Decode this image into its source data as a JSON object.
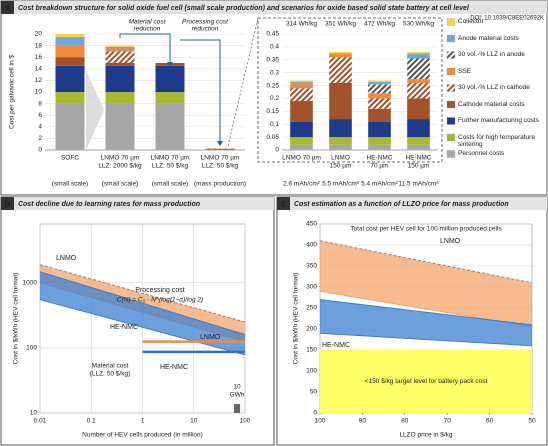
{
  "chart_data": [
    {
      "type": "stacked-bar",
      "panel": "a",
      "title": "Cost breakdown structure for solid oxide fuel cell (small scale production) and scenarios for oxide based solid state battery at cell level",
      "source": "DOI: 10.1039/C8EE02692K",
      "ylabel": "Cost per galvanic cell in $",
      "categories": [
        [
          "SOFC"
        ],
        [
          "LNMO 70 µm",
          "LLZ: 2000 $/kg"
        ],
        [
          "LNMO 70 µm",
          "LLZ: 50 $/kg"
        ],
        [
          "LNMO 70 µm",
          "LLZ: 50 $/kg"
        ]
      ],
      "sublabels": [
        "(small scale)",
        "(small scale)",
        "(small scale)",
        "(mass production)"
      ],
      "annotations": [
        [
          "Material cost",
          "reduction"
        ],
        [
          "Processing cost",
          "reduction"
        ]
      ],
      "ylim": [
        0,
        20
      ],
      "yticks": [
        0,
        2,
        4,
        6,
        8,
        10,
        12,
        14,
        16,
        18,
        20
      ],
      "grid": true,
      "series": [
        {
          "color": "#a6a6a6",
          "values": [
            8,
            8,
            8,
            0.03
          ]
        },
        {
          "color": "#a9b732",
          "values": [
            2,
            2,
            2,
            0.03
          ]
        },
        {
          "color": "#1f3a8a",
          "values": [
            4.5,
            4.5,
            4.5,
            0.07
          ]
        },
        {
          "color": "#a0522d",
          "values": [
            1.5,
            0.5,
            0.5,
            0.08
          ]
        },
        {
          "color": "#a0522d",
          "pattern": "hatch",
          "values": [
            0,
            2,
            0,
            0.05
          ]
        },
        {
          "color": "#f08a3c",
          "values": [
            2,
            0.5,
            0,
            0.02
          ]
        },
        {
          "color": "#ffffff",
          "pattern": "hatch",
          "values": [
            0,
            0,
            0,
            0
          ]
        },
        {
          "color": "#6fa8dc",
          "values": [
            1.5,
            0.3,
            0,
            0.005
          ]
        },
        {
          "color": "#ffd23f",
          "values": [
            0.5,
            0.2,
            0,
            0.005
          ]
        }
      ]
    },
    {
      "type": "stacked-bar",
      "categories": [
        [
          "LNMO 70 µm"
        ],
        [
          "LNMO",
          "150 µm"
        ],
        [
          "HE-NMC",
          "70 µm"
        ],
        [
          "HE-NMC",
          "150 µm"
        ]
      ],
      "top_labels": [
        "314 Wh/kg",
        "351 Wh/kg",
        "472 Wh/kg",
        "530 Wh/kg"
      ],
      "bottom_labels": [
        "2.6 mAh/cm²",
        "5.5 mAh/cm²",
        "5.4 mAh/cm²",
        "11.5 mAh/cm²"
      ],
      "ylim": [
        0,
        0.45
      ],
      "yticks": [
        0,
        0.05,
        0.1,
        0.15,
        0.2,
        0.25,
        0.3,
        0.35,
        0.4,
        0.45
      ],
      "grid": true,
      "series": [
        {
          "name": "Personnel costs",
          "color": "#a6a6a6",
          "values": [
            0.02,
            0.02,
            0.02,
            0.02
          ]
        },
        {
          "name": "Costs for high temperature sintering",
          "color": "#a9b732",
          "values": [
            0.03,
            0.03,
            0.03,
            0.03
          ]
        },
        {
          "name": "Further manufacturing costs",
          "color": "#1f3a8a",
          "values": [
            0.06,
            0.07,
            0.06,
            0.07
          ]
        },
        {
          "name": "Cathode material costs",
          "color": "#a0522d",
          "values": [
            0.08,
            0.14,
            0.05,
            0.08
          ]
        },
        {
          "name": "30 vol.-%  LLZ in cathode",
          "color": "#a0522d",
          "pattern": "hatch",
          "values": [
            0.05,
            0.1,
            0.04,
            0.06
          ]
        },
        {
          "name": "SSE",
          "color": "#f08a3c",
          "values": [
            0.02,
            0.015,
            0.02,
            0.015
          ]
        },
        {
          "name": "30 vol.-%  LLZ in anode",
          "color": "#555555",
          "pattern": "hatch",
          "values": [
            0,
            0,
            0.035,
            0.08
          ]
        },
        {
          "name": "Anode material costs",
          "color": "#6fa8dc",
          "values": [
            0.005,
            0,
            0.01,
            0.02
          ]
        },
        {
          "name": "Collector",
          "color": "#ffd23f",
          "values": [
            0.005,
            0.005,
            0.005,
            0.005
          ]
        }
      ]
    },
    {
      "type": "range",
      "panel": "b",
      "title": "Cost decline due to learning rates for mass production",
      "xlabel": "Number of HEV cells produced (in million)",
      "ylabel": "Cost in $/kWh (HEV cell format)",
      "xscale": "log",
      "yscale": "log",
      "xlim": [
        0.01,
        100
      ],
      "ylim": [
        10,
        8000
      ],
      "xticks": [
        0.01,
        0.1,
        1,
        10,
        100
      ],
      "yticks": [
        10,
        100,
        1000
      ],
      "grid": true,
      "x": [
        0.01,
        100
      ],
      "series": [
        {
          "name": "LNMO",
          "color": "#f4a46a",
          "upper_style": "dashed",
          "upper": [
            1900,
            250
          ],
          "lower": [
            1000,
            125
          ]
        },
        {
          "name": "HE-NMC",
          "color": "#3d7fd1",
          "upper": [
            1480,
            160
          ],
          "lower": [
            550,
            78
          ]
        }
      ],
      "process_label": "Processing cost",
      "formula": "C(N) = C₀ · N^(log(1−α)/log 2)",
      "material": {
        "label": [
          "Material cost",
          "(LLZ: 50 $/kg)"
        ],
        "x": [
          1,
          100
        ],
        "series": [
          {
            "name": "LNMO",
            "color": "#f08a3c",
            "values": [
              125,
              125
            ]
          },
          {
            "name": "HE-NMC",
            "color": "#2e6fd0",
            "values": [
              87,
              87
            ]
          }
        ]
      },
      "marker": {
        "label": [
          "10",
          "GWh"
        ],
        "x": 70
      }
    },
    {
      "type": "range",
      "panel": "c",
      "title": "Cost estimation as a function of LLZO price for mass production",
      "note": "Total cost per HEV cell for 100 million produced cells",
      "xlabel": "LLZO price in $/kg",
      "ylabel": "Cost in $/kWh (HEV cell format)",
      "xlim": [
        100,
        50
      ],
      "ylim": [
        0,
        450
      ],
      "xticks": [
        100,
        90,
        80,
        70,
        60,
        50
      ],
      "yticks": [
        0,
        50,
        100,
        150,
        200,
        250,
        300,
        350,
        400,
        450
      ],
      "grid": true,
      "x": [
        100,
        50
      ],
      "series": [
        {
          "name": "LNMO",
          "color": "#f4a46a",
          "upper_style": "dashed",
          "upper": [
            410,
            310
          ],
          "lower": [
            290,
            205
          ]
        },
        {
          "name": "HE-NMC",
          "color": "#3d7fd1",
          "upper": [
            270,
            210
          ],
          "lower": [
            190,
            160
          ]
        }
      ],
      "target": {
        "value": 150,
        "label": "<150 $/kg target level for battery pack cost",
        "color": "#ffff66"
      }
    }
  ]
}
